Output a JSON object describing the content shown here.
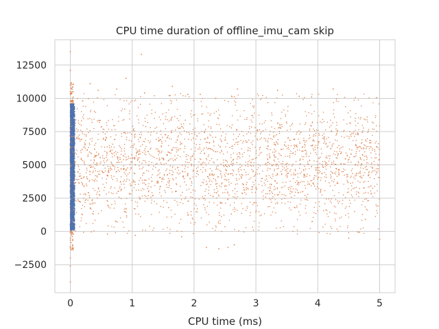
{
  "chart_data": {
    "type": "scatter",
    "title": "CPU time duration of offline_imu_cam skip",
    "xlabel": "CPU time (ms)",
    "ylabel": "",
    "xlim": [
      -0.25,
      5.25
    ],
    "ylim": [
      -4600,
      14400
    ],
    "xticks": [
      0,
      1,
      2,
      3,
      4,
      5
    ],
    "yticks": [
      -2500,
      0,
      2500,
      5000,
      7500,
      10000,
      12500
    ],
    "grid": true,
    "legend": "none",
    "series": [
      {
        "color": "#4c72b0",
        "description_points": [
          [
            0.02,
            150
          ],
          [
            0.03,
            1000
          ],
          [
            0.05,
            2000
          ],
          [
            0.03,
            3000
          ],
          [
            0.06,
            4000
          ],
          [
            0.04,
            5000
          ],
          [
            0.02,
            6000
          ],
          [
            0.05,
            7000
          ],
          [
            0.03,
            8000
          ],
          [
            0.06,
            9000
          ],
          [
            0.04,
            9500
          ],
          [
            0.01,
            500
          ],
          [
            0.06,
            1500
          ],
          [
            0.02,
            2500
          ],
          [
            0.05,
            3500
          ],
          [
            0.03,
            4500
          ],
          [
            0.06,
            5500
          ],
          [
            0.01,
            6500
          ],
          [
            0.04,
            7500
          ],
          [
            0.02,
            8500
          ]
        ],
        "x_range": [
          0.0,
          0.07
        ],
        "y_range": [
          100,
          9600
        ]
      },
      {
        "color": "#dd8452",
        "points": [
          [
            0.0,
            13500
          ],
          [
            0.0,
            12100
          ],
          [
            0.0,
            11000
          ],
          [
            0.0,
            10500
          ],
          [
            0.0,
            -3800
          ],
          [
            0.0,
            -2600
          ],
          [
            0.0,
            -2000
          ],
          [
            0.0,
            -1200
          ],
          [
            1.15,
            13300
          ],
          [
            0.32,
            11100
          ],
          [
            0.45,
            10600
          ],
          [
            0.75,
            10700
          ],
          [
            0.9,
            11500
          ],
          [
            1.2,
            10400
          ],
          [
            1.6,
            10200
          ],
          [
            1.65,
            10900
          ],
          [
            2.1,
            10300
          ],
          [
            2.7,
            10700
          ],
          [
            3.35,
            10600
          ],
          [
            3.7,
            10150
          ],
          [
            4.25,
            10700
          ],
          [
            4.95,
            10050
          ],
          [
            2.4,
            -1300
          ],
          [
            2.65,
            -1000
          ],
          [
            2.55,
            -1200
          ],
          [
            2.2,
            -1200
          ],
          [
            1.8,
            -400
          ],
          [
            0.6,
            -200
          ],
          [
            1.05,
            -300
          ],
          [
            4.5,
            -500
          ],
          [
            5.0,
            -600
          ],
          [
            1.9,
            10300
          ],
          [
            2.35,
            10000
          ],
          [
            3.9,
            10100
          ],
          [
            0.2,
            9800
          ]
        ],
        "x_range": [
          0.0,
          5.0
        ],
        "y_range": [
          -3800,
          13500
        ]
      }
    ]
  }
}
